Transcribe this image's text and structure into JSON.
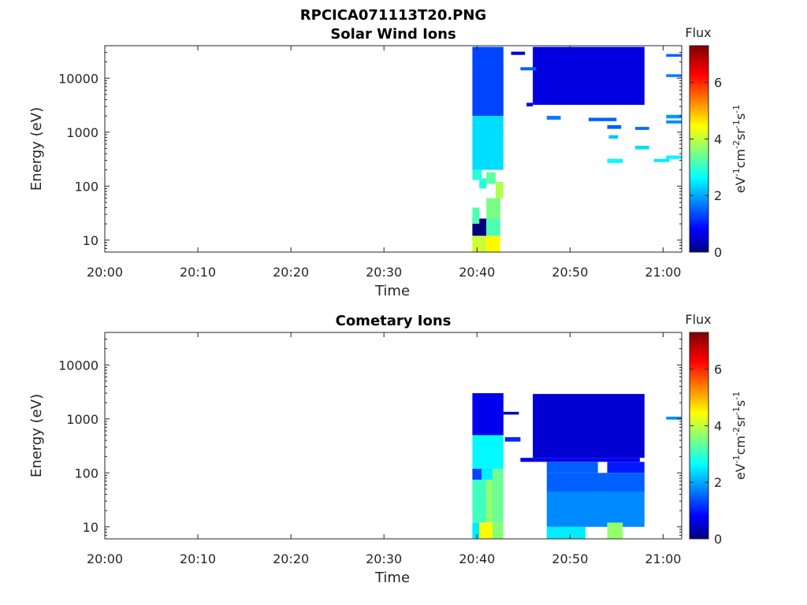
{
  "figure_title": "RPCICA071113T20.PNG",
  "chart_data": [
    {
      "type": "heatmap",
      "title": "Solar Wind Ions",
      "xlabel": "Time",
      "ylabel": "Energy (eV)",
      "x_ticks": [
        "20:00",
        "20:10",
        "20:20",
        "20:30",
        "20:40",
        "20:50",
        "21:00"
      ],
      "xlim": [
        "20:00",
        "21:02"
      ],
      "y_scale": "log",
      "y_ticks": [
        "10",
        "100",
        "1000",
        "10000"
      ],
      "ylim": [
        6,
        40000
      ],
      "colorbar": {
        "title": "Flux",
        "label": "eV^-1 cm^-2 sr^-1 s^-1",
        "range": [
          0,
          7.3
        ],
        "ticks": [
          "0",
          "2",
          "4",
          "6"
        ],
        "colormap": "jet"
      },
      "cells": [
        {
          "t0": "20:39:30",
          "t1": "20:41:00",
          "e0": 6,
          "e1": 12,
          "v": 4.2
        },
        {
          "t0": "20:41:00",
          "t1": "20:42:30",
          "e0": 6,
          "e1": 12,
          "v": 4.6
        },
        {
          "t0": "20:39:30",
          "t1": "20:41:00",
          "e0": 12,
          "e1": 25,
          "v": 0
        },
        {
          "t0": "20:41:00",
          "t1": "20:42:30",
          "e0": 12,
          "e1": 25,
          "v": 3.3
        },
        {
          "t0": "20:39:30",
          "t1": "20:40:15",
          "e0": 20,
          "e1": 40,
          "v": 3.3
        },
        {
          "t0": "20:41:00",
          "t1": "20:42:30",
          "e0": 25,
          "e1": 60,
          "v": 3.6
        },
        {
          "t0": "20:42:00",
          "t1": "20:42:50",
          "e0": 60,
          "e1": 120,
          "v": 4.0
        },
        {
          "t0": "20:40:15",
          "t1": "20:41:00",
          "e0": 90,
          "e1": 140,
          "v": 3.0
        },
        {
          "t0": "20:41:00",
          "t1": "20:42:00",
          "e0": 110,
          "e1": 180,
          "v": 3.4
        },
        {
          "t0": "20:39:30",
          "t1": "20:40:30",
          "e0": 130,
          "e1": 200,
          "v": 3.0
        },
        {
          "t0": "20:39:30",
          "t1": "20:42:50",
          "e0": 200,
          "e1": 2000,
          "v": 2.5
        },
        {
          "t0": "20:39:30",
          "t1": "20:42:50",
          "e0": 2000,
          "e1": 38000,
          "v": 1.4
        },
        {
          "t0": "20:43:40",
          "t1": "20:45:10",
          "e0": 27000,
          "e1": 31000,
          "v": 0.6
        },
        {
          "t0": "20:46:00",
          "t1": "20:58:00",
          "e0": 3200,
          "e1": 38000,
          "v": 0.7
        },
        {
          "t0": "20:45:20",
          "t1": "20:46:00",
          "e0": 3000,
          "e1": 3500,
          "v": 0.8
        },
        {
          "t0": "20:44:40",
          "t1": "20:46:20",
          "e0": 14000,
          "e1": 16000,
          "v": 1.6
        },
        {
          "t0": "20:47:30",
          "t1": "20:49:00",
          "e0": 1700,
          "e1": 2000,
          "v": 1.8
        },
        {
          "t0": "20:52:00",
          "t1": "20:55:00",
          "e0": 1600,
          "e1": 1850,
          "v": 1.6
        },
        {
          "t0": "20:54:00",
          "t1": "20:55:30",
          "e0": 1150,
          "e1": 1350,
          "v": 1.6
        },
        {
          "t0": "20:57:00",
          "t1": "20:58:30",
          "e0": 1100,
          "e1": 1250,
          "v": 1.7
        },
        {
          "t0": "20:54:10",
          "t1": "20:55:10",
          "e0": 760,
          "e1": 880,
          "v": 2.3
        },
        {
          "t0": "20:57:00",
          "t1": "20:58:30",
          "e0": 480,
          "e1": 560,
          "v": 2.5
        },
        {
          "t0": "20:54:00",
          "t1": "20:55:40",
          "e0": 270,
          "e1": 320,
          "v": 2.7
        },
        {
          "t0": "20:59:00",
          "t1": "21:00:40",
          "e0": 280,
          "e1": 320,
          "v": 2.6
        },
        {
          "t0": "21:00:20",
          "t1": "21:02:00",
          "e0": 320,
          "e1": 370,
          "v": 2.7
        },
        {
          "t0": "21:00:20",
          "t1": "21:02:00",
          "e0": 1800,
          "e1": 2100,
          "v": 2.0
        },
        {
          "t0": "21:00:20",
          "t1": "21:02:00",
          "e0": 1450,
          "e1": 1650,
          "v": 1.9
        },
        {
          "t0": "21:00:20",
          "t1": "21:02:00",
          "e0": 10500,
          "e1": 11800,
          "v": 1.8
        },
        {
          "t0": "21:00:20",
          "t1": "21:02:00",
          "e0": 25000,
          "e1": 28000,
          "v": 1.6
        }
      ]
    },
    {
      "type": "heatmap",
      "title": "Cometary Ions",
      "xlabel": "Time",
      "ylabel": "Energy (eV)",
      "x_ticks": [
        "20:00",
        "20:10",
        "20:20",
        "20:30",
        "20:40",
        "20:50",
        "21:00"
      ],
      "xlim": [
        "20:00",
        "21:02"
      ],
      "y_scale": "log",
      "y_ticks": [
        "10",
        "100",
        "1000",
        "10000"
      ],
      "ylim": [
        6,
        40000
      ],
      "colorbar": {
        "title": "Flux",
        "label": "eV^-1 cm^-2 sr^-1 s^-1",
        "range": [
          0,
          7.3
        ],
        "ticks": [
          "0",
          "2",
          "4",
          "6"
        ],
        "colormap": "jet"
      },
      "cells": [
        {
          "t0": "20:39:30",
          "t1": "20:40:15",
          "e0": 6,
          "e1": 12,
          "v": 2.6
        },
        {
          "t0": "20:40:15",
          "t1": "20:41:40",
          "e0": 6,
          "e1": 12,
          "v": 4.6
        },
        {
          "t0": "20:41:40",
          "t1": "20:42:50",
          "e0": 6,
          "e1": 12,
          "v": 3.7
        },
        {
          "t0": "20:39:30",
          "t1": "20:41:00",
          "e0": 12,
          "e1": 75,
          "v": 3.2
        },
        {
          "t0": "20:41:00",
          "t1": "20:41:40",
          "e0": 12,
          "e1": 75,
          "v": 3.8
        },
        {
          "t0": "20:41:40",
          "t1": "20:42:50",
          "e0": 12,
          "e1": 75,
          "v": 3.5
        },
        {
          "t0": "20:39:30",
          "t1": "20:40:30",
          "e0": 75,
          "e1": 120,
          "v": 1.4
        },
        {
          "t0": "20:40:30",
          "t1": "20:41:40",
          "e0": 75,
          "e1": 120,
          "v": 2.6
        },
        {
          "t0": "20:41:40",
          "t1": "20:42:50",
          "e0": 75,
          "e1": 120,
          "v": 3.5
        },
        {
          "t0": "20:39:30",
          "t1": "20:42:50",
          "e0": 120,
          "e1": 500,
          "v": 2.7
        },
        {
          "t0": "20:39:30",
          "t1": "20:42:50",
          "e0": 500,
          "e1": 3000,
          "v": 0.8
        },
        {
          "t0": "20:42:50",
          "t1": "20:44:30",
          "e0": 1200,
          "e1": 1350,
          "v": 0.4
        },
        {
          "t0": "20:43:00",
          "t1": "20:44:40",
          "e0": 380,
          "e1": 460,
          "v": 1.2
        },
        {
          "t0": "20:44:40",
          "t1": "20:57:30",
          "e0": 160,
          "e1": 190,
          "v": 0.8
        },
        {
          "t0": "20:46:00",
          "t1": "20:58:00",
          "e0": 190,
          "e1": 2900,
          "v": 0.6
        },
        {
          "t0": "20:47:30",
          "t1": "20:53:00",
          "e0": 100,
          "e1": 160,
          "v": 1.6
        },
        {
          "t0": "20:54:00",
          "t1": "20:58:00",
          "e0": 100,
          "e1": 160,
          "v": 1.1
        },
        {
          "t0": "20:47:30",
          "t1": "20:58:00",
          "e0": 45,
          "e1": 100,
          "v": 1.6
        },
        {
          "t0": "20:47:30",
          "t1": "20:58:00",
          "e0": 10,
          "e1": 45,
          "v": 1.9
        },
        {
          "t0": "20:47:30",
          "t1": "20:51:40",
          "e0": 6,
          "e1": 10,
          "v": 2.6
        },
        {
          "t0": "20:54:00",
          "t1": "20:55:40",
          "e0": 6,
          "e1": 12,
          "v": 3.8
        },
        {
          "t0": "21:00:20",
          "t1": "21:02:00",
          "e0": 970,
          "e1": 1100,
          "v": 1.9
        }
      ]
    }
  ]
}
